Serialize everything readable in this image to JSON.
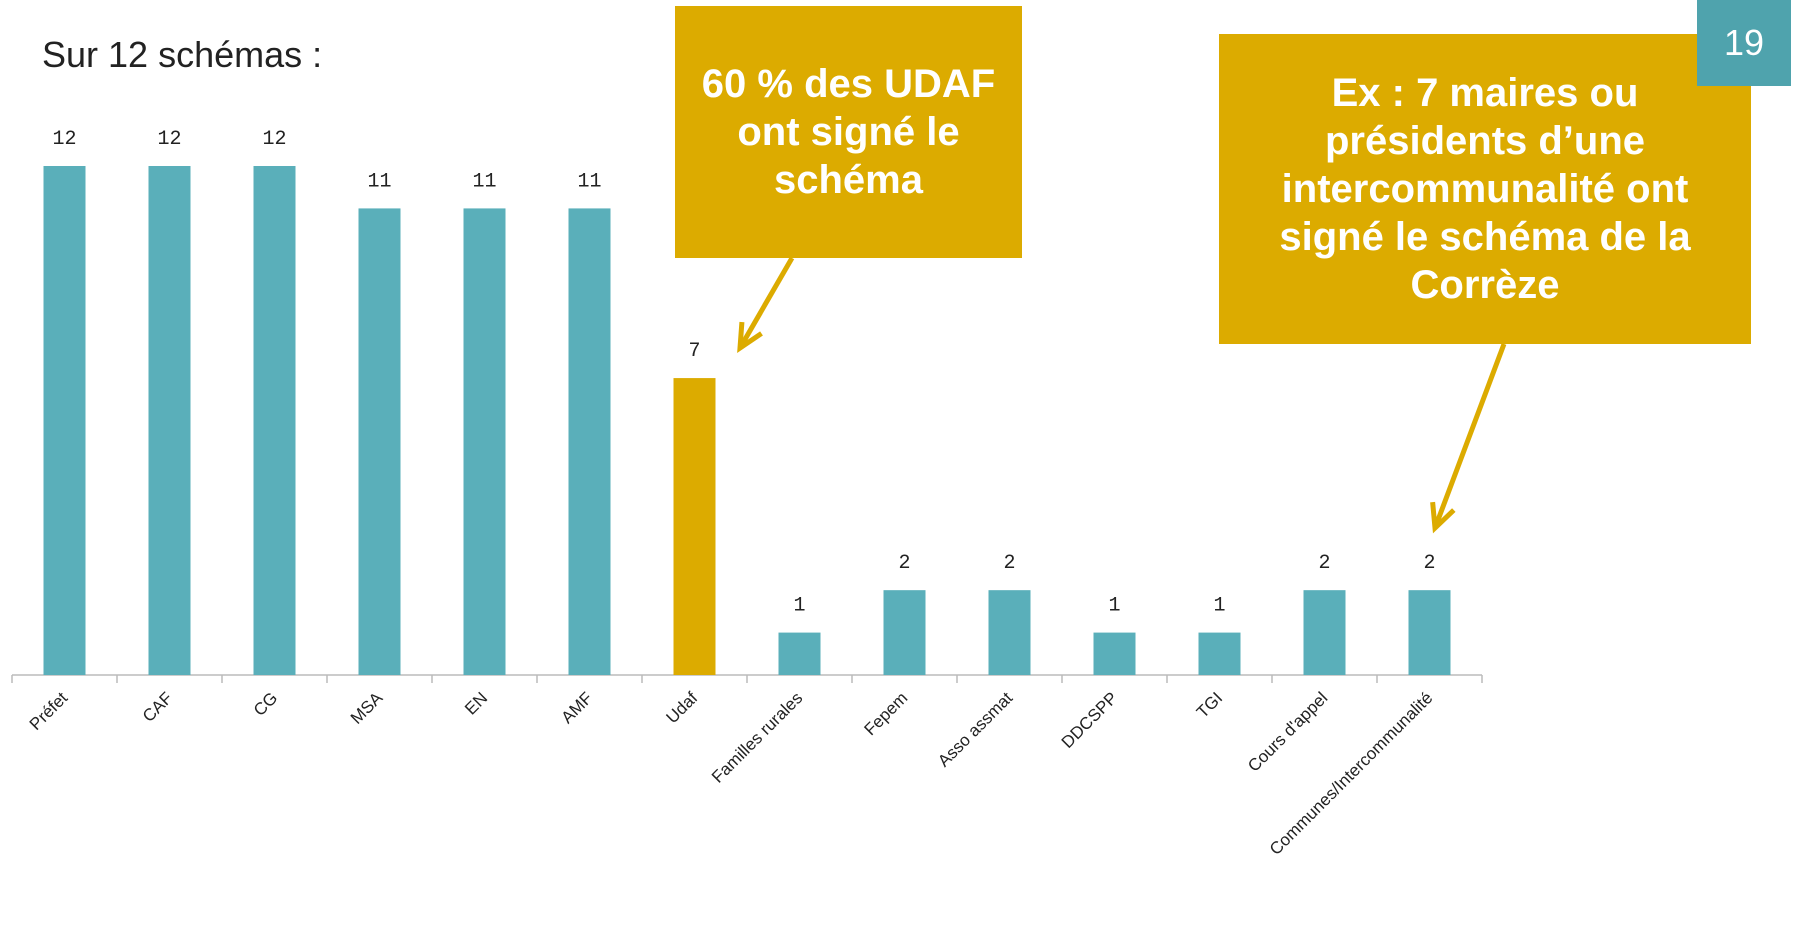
{
  "chart_data": {
    "type": "bar",
    "title": "Sur 12 schémas :",
    "categories": [
      "Préfet",
      "CAF",
      "CG",
      "MSA",
      "EN",
      "AMF",
      "Udaf",
      "Familles rurales",
      "Fepem",
      "Asso assmat",
      "DDCSPP",
      "TGI",
      "Cours d'appel",
      "Communes/Intercommunalité"
    ],
    "values": [
      12,
      12,
      12,
      11,
      11,
      11,
      7,
      1,
      2,
      2,
      1,
      1,
      2,
      2
    ],
    "colors": [
      "#5aafba",
      "#5aafba",
      "#5aafba",
      "#5aafba",
      "#5aafba",
      "#5aafba",
      "#dcab00",
      "#5aafba",
      "#5aafba",
      "#5aafba",
      "#5aafba",
      "#5aafba",
      "#5aafba",
      "#5aafba"
    ],
    "annotations": [
      "60 % des UDAF ont signé le schéma",
      "Ex : 7 maires ou présidents d’une intercommunalité ont signé le schéma de la Corrèze"
    ],
    "page_number": "19"
  }
}
